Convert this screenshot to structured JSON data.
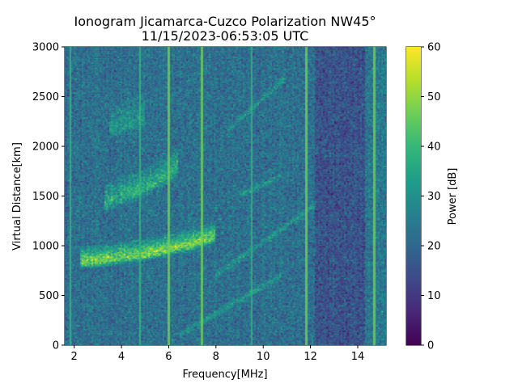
{
  "chart_data": {
    "type": "heatmap",
    "title": "Ionogram Jicamarca-Cuzco Polarization NW45°",
    "subtitle": "11/15/2023-06:53:05 UTC",
    "xlabel": "Frequency[MHz]",
    "ylabel": "Virtual Distance[km]",
    "xlim": [
      1.6,
      15.2
    ],
    "ylim": [
      0,
      3000
    ],
    "xticks": [
      2,
      4,
      6,
      8,
      10,
      12,
      14
    ],
    "yticks": [
      0,
      500,
      1000,
      1500,
      2000,
      2500,
      3000
    ],
    "colorbar": {
      "label": "Power [dB]",
      "range": [
        0,
        60
      ],
      "ticks": [
        0,
        10,
        20,
        30,
        40,
        50,
        60
      ],
      "colormap": "viridis"
    },
    "interference_lines_mhz": [
      1.85,
      4.8,
      6.0,
      7.4,
      9.5,
      11.8,
      14.7
    ],
    "traces": [
      {
        "name": "main-trace",
        "points": [
          [
            2.3,
            820
          ],
          [
            3.2,
            840
          ],
          [
            4.0,
            870
          ],
          [
            5.0,
            900
          ],
          [
            6.0,
            950
          ],
          [
            7.0,
            1000
          ],
          [
            8.0,
            1080
          ]
        ]
      },
      {
        "name": "second-hop",
        "points": [
          [
            3.3,
            1400
          ],
          [
            4.0,
            1480
          ],
          [
            5.0,
            1560
          ],
          [
            6.0,
            1700
          ],
          [
            6.4,
            1780
          ]
        ]
      },
      {
        "name": "upper-faint",
        "points": [
          [
            3.5,
            2150
          ],
          [
            4.2,
            2200
          ],
          [
            5.0,
            2260
          ]
        ]
      }
    ],
    "oblique_streaks": [
      {
        "points": [
          [
            6.5,
            100
          ],
          [
            10.8,
            700
          ]
        ]
      },
      {
        "points": [
          [
            8.0,
            700
          ],
          [
            12.2,
            1400
          ]
        ]
      },
      {
        "points": [
          [
            9.0,
            1500
          ],
          [
            10.8,
            1700
          ]
        ]
      },
      {
        "points": [
          [
            8.5,
            2150
          ],
          [
            11.0,
            2700
          ]
        ]
      }
    ]
  }
}
